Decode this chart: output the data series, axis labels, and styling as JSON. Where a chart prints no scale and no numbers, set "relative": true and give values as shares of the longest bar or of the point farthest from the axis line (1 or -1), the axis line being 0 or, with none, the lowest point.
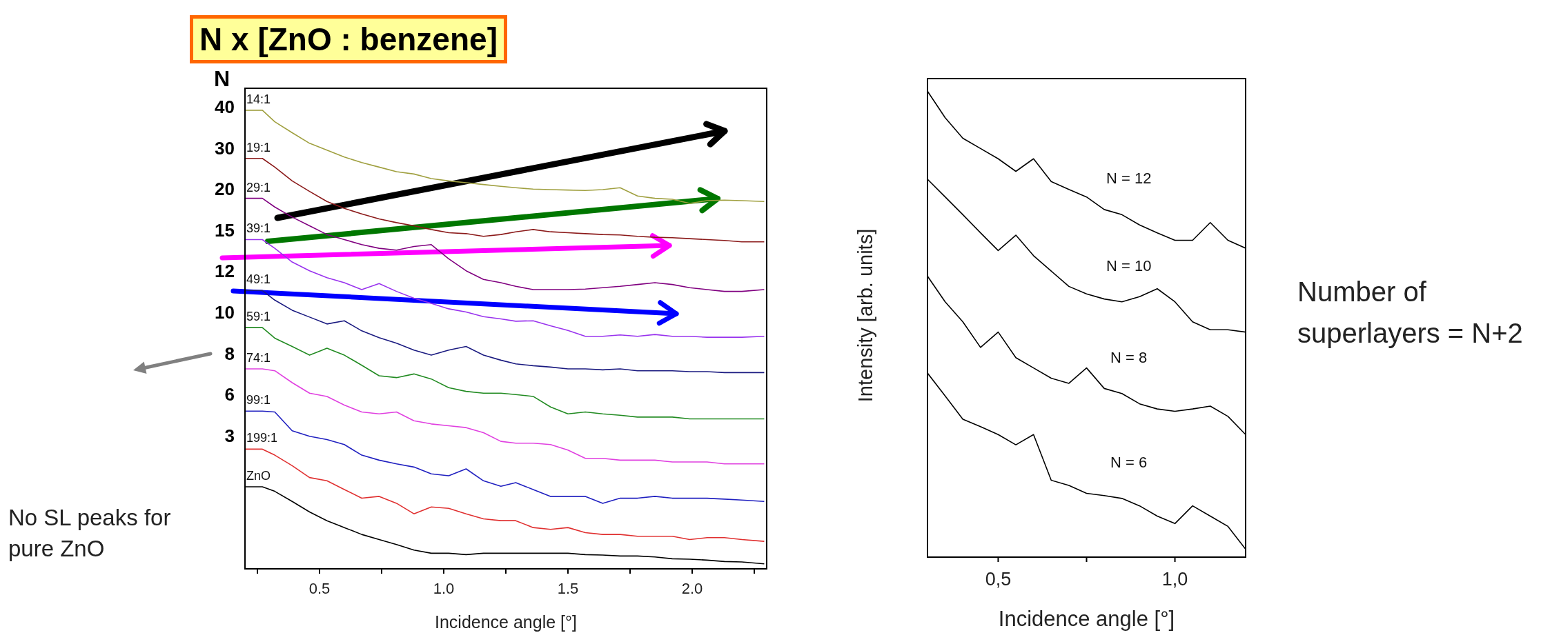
{
  "chart_data": [
    {
      "type": "line",
      "title": "N x [ZnO : benzene]",
      "xlabel": "Incidence angle [°]",
      "relative": true,
      "xlim": [
        0.2,
        2.3
      ],
      "xticks": [
        {
          "value": 0.25,
          "label": null
        },
        0.5,
        {
          "value": 0.75,
          "label": null
        },
        {
          "value": 1,
          "label": "1.0"
        },
        {
          "value": 1.25,
          "label": null
        },
        1.5,
        {
          "value": 1.75,
          "label": null
        },
        {
          "value": 2,
          "label": "2.0"
        },
        {
          "value": 2.25,
          "label": null
        }
      ],
      "x": [
        0.2,
        0.27,
        0.32,
        0.39,
        0.46,
        0.53,
        0.6,
        0.67,
        0.74,
        0.81,
        0.88,
        0.95,
        1.02,
        1.09,
        1.16,
        1.23,
        1.29,
        1.36,
        1.43,
        1.5,
        1.57,
        1.64,
        1.71,
        1.78,
        1.85,
        1.92,
        1.99,
        2.06,
        2.13,
        2.2,
        2.29
      ],
      "series": [
        {
          "name": "14:1",
          "color": "#a0a040",
          "values": [
            1.0,
            1.0,
            0.975,
            0.951,
            0.928,
            0.913,
            0.898,
            0.886,
            0.876,
            0.866,
            0.861,
            0.851,
            0.846,
            0.842,
            0.838,
            0.834,
            0.831,
            0.828,
            0.827,
            0.826,
            0.825,
            0.827,
            0.831,
            0.813,
            0.808,
            0.806,
            0.797,
            0.803,
            0.804,
            0.803,
            0.801
          ]
        },
        {
          "name": "19:1",
          "color": "#8b1a1a",
          "values": [
            0.895,
            0.895,
            0.876,
            0.846,
            0.823,
            0.801,
            0.786,
            0.774,
            0.763,
            0.755,
            0.748,
            0.74,
            0.733,
            0.731,
            0.725,
            0.729,
            0.735,
            0.74,
            0.735,
            0.733,
            0.731,
            0.729,
            0.728,
            0.725,
            0.723,
            0.722,
            0.72,
            0.718,
            0.716,
            0.713,
            0.713
          ]
        },
        {
          "name": "29:1",
          "color": "#800080",
          "values": [
            0.808,
            0.808,
            0.789,
            0.767,
            0.748,
            0.729,
            0.718,
            0.707,
            0.699,
            0.695,
            0.703,
            0.707,
            0.676,
            0.65,
            0.631,
            0.624,
            0.616,
            0.609,
            0.609,
            0.609,
            0.61,
            0.613,
            0.616,
            0.62,
            0.624,
            0.62,
            0.613,
            0.609,
            0.605,
            0.605,
            0.609
          ]
        },
        {
          "name": "39:1",
          "color": "#9933ee",
          "values": [
            0.718,
            0.718,
            0.699,
            0.669,
            0.65,
            0.635,
            0.624,
            0.609,
            0.622,
            0.605,
            0.59,
            0.579,
            0.567,
            0.56,
            0.55,
            0.545,
            0.54,
            0.541,
            0.53,
            0.52,
            0.507,
            0.507,
            0.51,
            0.507,
            0.511,
            0.507,
            0.507,
            0.505,
            0.505,
            0.505,
            0.507
          ]
        },
        {
          "name": "49:1",
          "color": "#1a1a80",
          "values": [
            0.607,
            0.607,
            0.586,
            0.564,
            0.549,
            0.534,
            0.541,
            0.519,
            0.504,
            0.492,
            0.477,
            0.466,
            0.477,
            0.485,
            0.466,
            0.455,
            0.447,
            0.443,
            0.44,
            0.436,
            0.436,
            0.434,
            0.436,
            0.432,
            0.432,
            0.432,
            0.43,
            0.43,
            0.428,
            0.428,
            0.428
          ]
        },
        {
          "name": "59:1",
          "color": "#228b22",
          "values": [
            0.526,
            0.526,
            0.503,
            0.485,
            0.466,
            0.481,
            0.466,
            0.444,
            0.421,
            0.417,
            0.425,
            0.414,
            0.395,
            0.387,
            0.383,
            0.383,
            0.38,
            0.376,
            0.353,
            0.338,
            0.342,
            0.338,
            0.335,
            0.331,
            0.331,
            0.331,
            0.327,
            0.327,
            0.327,
            0.327,
            0.327
          ]
        },
        {
          "name": "74:1",
          "color": "#e040e0",
          "values": [
            0.436,
            0.436,
            0.432,
            0.406,
            0.383,
            0.376,
            0.357,
            0.342,
            0.338,
            0.342,
            0.323,
            0.316,
            0.312,
            0.308,
            0.297,
            0.278,
            0.274,
            0.274,
            0.271,
            0.259,
            0.241,
            0.241,
            0.237,
            0.237,
            0.237,
            0.233,
            0.233,
            0.233,
            0.229,
            0.229,
            0.229
          ]
        },
        {
          "name": "99:1",
          "color": "#2020c0",
          "values": [
            0.344,
            0.344,
            0.342,
            0.301,
            0.289,
            0.282,
            0.271,
            0.248,
            0.237,
            0.229,
            0.222,
            0.207,
            0.203,
            0.218,
            0.192,
            0.18,
            0.188,
            0.173,
            0.158,
            0.158,
            0.158,
            0.143,
            0.154,
            0.154,
            0.158,
            0.154,
            0.154,
            0.154,
            0.152,
            0.15,
            0.147
          ]
        },
        {
          "name": "199:1",
          "color": "#e03030",
          "values": [
            0.261,
            0.261,
            0.248,
            0.225,
            0.199,
            0.192,
            0.173,
            0.154,
            0.158,
            0.143,
            0.12,
            0.135,
            0.132,
            0.12,
            0.109,
            0.105,
            0.105,
            0.09,
            0.086,
            0.09,
            0.079,
            0.075,
            0.075,
            0.071,
            0.071,
            0.071,
            0.064,
            0.068,
            0.068,
            0.064,
            0.06
          ]
        },
        {
          "name": "ZnO",
          "color": "#000000",
          "values": [
            0.179,
            0.179,
            0.169,
            0.147,
            0.124,
            0.105,
            0.09,
            0.075,
            0.064,
            0.053,
            0.041,
            0.034,
            0.034,
            0.031,
            0.034,
            0.034,
            0.034,
            0.034,
            0.034,
            0.034,
            0.031,
            0.03,
            0.028,
            0.028,
            0.026,
            0.022,
            0.021,
            0.019,
            0.016,
            0.015,
            0.011
          ]
        }
      ],
      "annotations": [
        "N",
        "40",
        "30",
        "20",
        "15",
        "12",
        "10",
        "8",
        "6",
        "3",
        "No SL peaks for pure ZnO"
      ]
    },
    {
      "type": "line",
      "xlabel": "Incidence angle [°]",
      "ylabel": "Intensity [arb. units]",
      "relative": true,
      "xlim": [
        0.3,
        1.2
      ],
      "xticks": [
        {
          "value": 0.5,
          "label": "0,5"
        },
        {
          "value": 0.75,
          "label": null
        },
        {
          "value": 1,
          "label": "1,0"
        }
      ],
      "x": [
        0.3,
        0.35,
        0.4,
        0.45,
        0.5,
        0.55,
        0.6,
        0.65,
        0.7,
        0.75,
        0.8,
        0.85,
        0.9,
        0.95,
        1.0,
        1.05,
        1.1,
        1.15,
        1.2
      ],
      "series": [
        {
          "name": "N = 12",
          "color": "#000000",
          "values": [
            1.0,
            0.943,
            0.899,
            0.877,
            0.855,
            0.828,
            0.855,
            0.806,
            0.789,
            0.773,
            0.746,
            0.735,
            0.713,
            0.696,
            0.68,
            0.68,
            0.718,
            0.68,
            0.663
          ]
        },
        {
          "name": "N = 10",
          "color": "#000000",
          "values": [
            0.811,
            0.773,
            0.735,
            0.696,
            0.658,
            0.691,
            0.647,
            0.614,
            0.581,
            0.565,
            0.554,
            0.548,
            0.559,
            0.576,
            0.548,
            0.505,
            0.488,
            0.488,
            0.483
          ]
        },
        {
          "name": "N = 8",
          "color": "#000000",
          "values": [
            0.603,
            0.548,
            0.505,
            0.45,
            0.483,
            0.428,
            0.406,
            0.384,
            0.373,
            0.406,
            0.362,
            0.351,
            0.329,
            0.318,
            0.313,
            0.318,
            0.324,
            0.302,
            0.263
          ]
        },
        {
          "name": "N = 6",
          "color": "#000000",
          "values": [
            0.395,
            0.346,
            0.296,
            0.28,
            0.263,
            0.241,
            0.263,
            0.165,
            0.154,
            0.137,
            0.132,
            0.126,
            0.11,
            0.088,
            0.072,
            0.11,
            0.088,
            0.066,
            0.017
          ]
        }
      ],
      "annotations": [
        "Number of superlayers = N+2"
      ]
    }
  ]
}
